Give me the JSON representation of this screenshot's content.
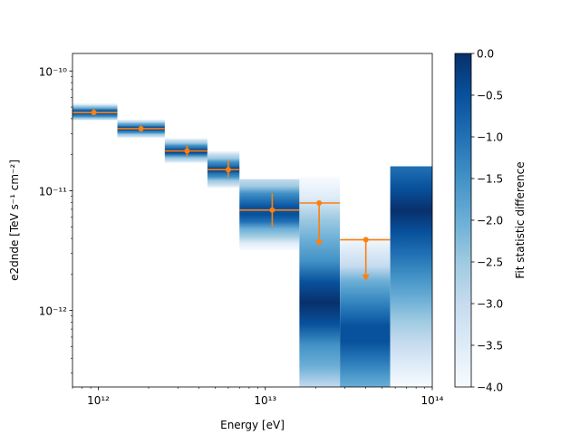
{
  "chart_data": {
    "type": "scatter",
    "title": "",
    "xlabel": "Energy [eV]",
    "ylabel": "e2dnde [TeV s⁻¹ cm⁻²]",
    "xscale": "log",
    "yscale": "log",
    "xlim": [
      700000000000.0,
      100000000000000.0
    ],
    "ylim": [
      2.3e-13,
      1.4e-10
    ],
    "x_ticks": [
      {
        "value": 1000000000000.0,
        "label": "10¹²"
      },
      {
        "value": 10000000000000.0,
        "label": "10¹³"
      },
      {
        "value": 100000000000000.0,
        "label": "10¹⁴"
      }
    ],
    "y_ticks": [
      {
        "value": 1e-12,
        "label": "10⁻¹²"
      },
      {
        "value": 1e-11,
        "label": "10⁻¹¹"
      },
      {
        "value": 1e-10,
        "label": "10⁻¹⁰"
      }
    ],
    "flux_points": [
      {
        "x": 940000000000.0,
        "x_lo": 700000000000.0,
        "x_hi": 1300000000000.0,
        "y": 4.5e-11,
        "y_lo": 4.3e-11,
        "y_hi": 4.8e-11,
        "ul": false
      },
      {
        "x": 1800000000000.0,
        "x_lo": 1300000000000.0,
        "x_hi": 2500000000000.0,
        "y": 3.3e-11,
        "y_lo": 3.1e-11,
        "y_hi": 3.5e-11,
        "ul": false
      },
      {
        "x": 3400000000000.0,
        "x_lo": 2500000000000.0,
        "x_hi": 4500000000000.0,
        "y": 2.15e-11,
        "y_lo": 1.95e-11,
        "y_hi": 2.4e-11,
        "ul": false
      },
      {
        "x": 6000000000000.0,
        "x_lo": 4500000000000.0,
        "x_hi": 7000000000000.0,
        "y": 1.5e-11,
        "y_lo": 1.3e-11,
        "y_hi": 1.8e-11,
        "ul": false
      },
      {
        "x": 11000000000000.0,
        "x_lo": 7000000000000.0,
        "x_hi": 16000000000000.0,
        "y": 6.9e-12,
        "y_lo": 5e-12,
        "y_hi": 9.5e-12,
        "ul": false
      },
      {
        "x": 21000000000000.0,
        "x_lo": 16000000000000.0,
        "x_hi": 28000000000000.0,
        "y": 7.9e-12,
        "arrow_to": 3.5e-12,
        "ul": true
      },
      {
        "x": 40000000000000.0,
        "x_lo": 28000000000000.0,
        "x_hi": 56000000000000.0,
        "y": 3.9e-12,
        "arrow_to": 1.8e-12,
        "ul": true
      }
    ],
    "profiles": [
      {
        "x_lo": 700000000000.0,
        "x_hi": 1300000000000.0,
        "y_min": 3.9e-11,
        "y_max": 5.4e-11,
        "y_best": 4.5e-11
      },
      {
        "x_lo": 1300000000000.0,
        "x_hi": 2500000000000.0,
        "y_min": 2.75e-11,
        "y_max": 3.9e-11,
        "y_best": 3.3e-11
      },
      {
        "x_lo": 2500000000000.0,
        "x_hi": 4500000000000.0,
        "y_min": 1.7e-11,
        "y_max": 2.75e-11,
        "y_best": 2.15e-11
      },
      {
        "x_lo": 4500000000000.0,
        "x_hi": 7000000000000.0,
        "y_min": 1.05e-11,
        "y_max": 2.15e-11,
        "y_best": 1.5e-11
      },
      {
        "x_lo": 7000000000000.0,
        "x_hi": 16000000000000.0,
        "y_min": 3.2e-12,
        "y_max": 1.25e-11,
        "y_best": 6.9e-12
      },
      {
        "x_lo": 16000000000000.0,
        "x_hi": 28000000000000.0,
        "y_min": 2.3e-13,
        "y_max": 1.3e-11,
        "y_best": 1.2e-12
      },
      {
        "x_lo": 28000000000000.0,
        "x_hi": 56000000000000.0,
        "y_min": 2.3e-13,
        "y_max": 4.2e-12,
        "y_best": 6.5e-13
      },
      {
        "x_lo": 56000000000000.0,
        "x_hi": 100000000000000.0,
        "y_min": 2.3e-13,
        "y_max": 1.6e-11,
        "y_best": 6e-12
      }
    ],
    "colorbar": {
      "label": "Fit statistic difference",
      "range": [
        -4.0,
        0.0
      ],
      "ticks": [
        {
          "value": 0.0,
          "label": "0.0"
        },
        {
          "value": -0.5,
          "label": "−0.5"
        },
        {
          "value": -1.0,
          "label": "−1.0"
        },
        {
          "value": -1.5,
          "label": "−1.5"
        },
        {
          "value": -2.0,
          "label": "−2.0"
        },
        {
          "value": -2.5,
          "label": "−2.5"
        },
        {
          "value": -3.0,
          "label": "−3.0"
        },
        {
          "value": -3.5,
          "label": "−3.5"
        },
        {
          "value": -4.0,
          "label": "−4.0"
        }
      ]
    },
    "colors": {
      "points": "#ff7f0e",
      "cmap": [
        "#f7fbff",
        "#deebf7",
        "#c6dbef",
        "#9ecae1",
        "#6baed6",
        "#4292c6",
        "#2171b5",
        "#08519c",
        "#08306b"
      ]
    },
    "grid": false,
    "legend": false
  }
}
